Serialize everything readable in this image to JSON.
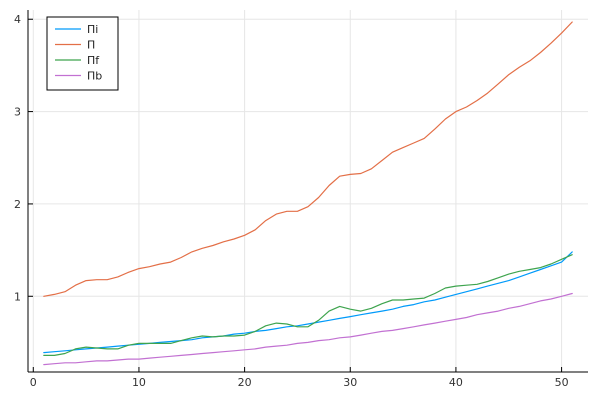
{
  "chart_data": {
    "type": "line",
    "title": "",
    "xlabel": "",
    "ylabel": "",
    "xlim": [
      -0.5,
      52.5
    ],
    "ylim": [
      0.18,
      4.1
    ],
    "x_ticks": [
      0,
      10,
      20,
      30,
      40,
      50
    ],
    "y_ticks": [
      1,
      2,
      3,
      4
    ],
    "grid": true,
    "legend_position": "top-left",
    "x": [
      1,
      2,
      3,
      4,
      5,
      6,
      7,
      8,
      9,
      10,
      11,
      12,
      13,
      14,
      15,
      16,
      17,
      18,
      19,
      20,
      21,
      22,
      23,
      24,
      25,
      26,
      27,
      28,
      29,
      30,
      31,
      32,
      33,
      34,
      35,
      36,
      37,
      38,
      39,
      40,
      41,
      42,
      43,
      44,
      45,
      46,
      47,
      48,
      49,
      50,
      51
    ],
    "series": [
      {
        "name": "Πi",
        "color": "#009AFA",
        "values": [
          0.39,
          0.4,
          0.41,
          0.42,
          0.43,
          0.44,
          0.45,
          0.46,
          0.47,
          0.48,
          0.49,
          0.5,
          0.51,
          0.52,
          0.53,
          0.55,
          0.56,
          0.57,
          0.59,
          0.6,
          0.62,
          0.63,
          0.65,
          0.67,
          0.68,
          0.7,
          0.72,
          0.74,
          0.76,
          0.78,
          0.8,
          0.82,
          0.84,
          0.86,
          0.89,
          0.91,
          0.94,
          0.96,
          0.99,
          1.02,
          1.05,
          1.08,
          1.11,
          1.14,
          1.17,
          1.21,
          1.25,
          1.29,
          1.33,
          1.37,
          1.48
        ]
      },
      {
        "name": "Π",
        "color": "#E36F47",
        "values": [
          1.0,
          1.02,
          1.05,
          1.12,
          1.17,
          1.18,
          1.18,
          1.21,
          1.26,
          1.3,
          1.32,
          1.35,
          1.37,
          1.42,
          1.48,
          1.52,
          1.55,
          1.59,
          1.62,
          1.66,
          1.72,
          1.82,
          1.89,
          1.92,
          1.92,
          1.97,
          2.07,
          2.2,
          2.3,
          2.32,
          2.33,
          2.38,
          2.47,
          2.56,
          2.61,
          2.66,
          2.71,
          2.81,
          2.92,
          3.0,
          3.05,
          3.12,
          3.2,
          3.3,
          3.4,
          3.48,
          3.55,
          3.64,
          3.74,
          3.85,
          3.97
        ]
      },
      {
        "name": "Πf",
        "color": "#3EA44E",
        "values": [
          0.36,
          0.36,
          0.38,
          0.43,
          0.45,
          0.44,
          0.43,
          0.43,
          0.47,
          0.49,
          0.49,
          0.49,
          0.49,
          0.52,
          0.55,
          0.57,
          0.56,
          0.57,
          0.57,
          0.58,
          0.62,
          0.68,
          0.71,
          0.7,
          0.67,
          0.67,
          0.74,
          0.84,
          0.89,
          0.86,
          0.84,
          0.87,
          0.92,
          0.96,
          0.96,
          0.97,
          0.98,
          1.03,
          1.09,
          1.11,
          1.12,
          1.13,
          1.16,
          1.2,
          1.24,
          1.27,
          1.29,
          1.31,
          1.35,
          1.4,
          1.45
        ]
      },
      {
        "name": "Πb",
        "color": "#C271D2",
        "values": [
          0.26,
          0.27,
          0.28,
          0.28,
          0.29,
          0.3,
          0.3,
          0.31,
          0.32,
          0.32,
          0.33,
          0.34,
          0.35,
          0.36,
          0.37,
          0.38,
          0.39,
          0.4,
          0.41,
          0.42,
          0.43,
          0.45,
          0.46,
          0.47,
          0.49,
          0.5,
          0.52,
          0.53,
          0.55,
          0.56,
          0.58,
          0.6,
          0.62,
          0.63,
          0.65,
          0.67,
          0.69,
          0.71,
          0.73,
          0.75,
          0.77,
          0.8,
          0.82,
          0.84,
          0.87,
          0.89,
          0.92,
          0.95,
          0.97,
          1.0,
          1.03
        ]
      }
    ]
  }
}
